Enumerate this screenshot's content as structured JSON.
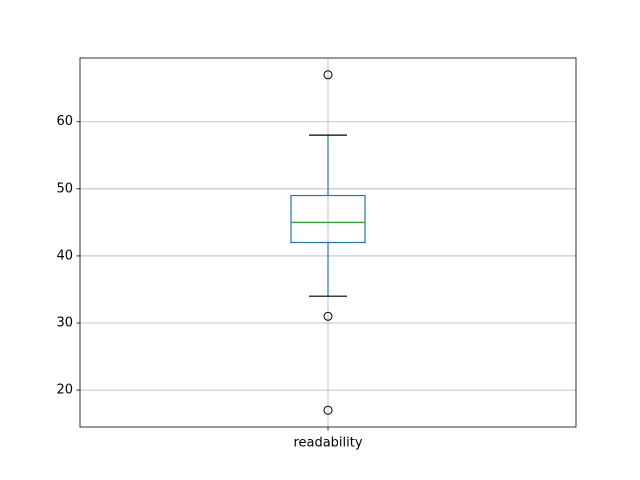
{
  "chart_data": {
    "type": "box",
    "categories": [
      "readability"
    ],
    "boxes": [
      {
        "min": 34,
        "q1": 42,
        "median": 45,
        "q3": 49,
        "max": 58,
        "outliers": [
          67,
          31,
          17
        ]
      }
    ],
    "box_color": "#1f77b4",
    "median_color": "#2ca02c",
    "cap_color": "#000000",
    "ylim": [
      14.5,
      69.5
    ],
    "yticks": [
      20,
      30,
      40,
      50,
      60
    ],
    "grid": true
  }
}
